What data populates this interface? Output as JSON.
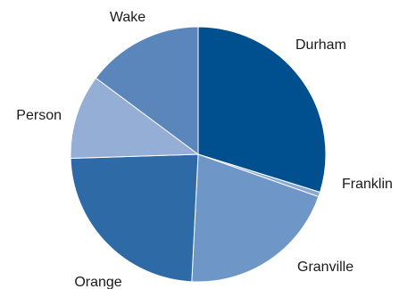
{
  "chart_data": {
    "type": "pie",
    "title": "",
    "start_angle_deg": 0,
    "direction": "clockwise",
    "legend": "none",
    "slices": [
      {
        "label": "Durham",
        "value": 29.8,
        "color": "#004f8f"
      },
      {
        "label": "Franklin",
        "value": 0.6,
        "color": "#8aaad2"
      },
      {
        "label": "Granville",
        "value": 20.4,
        "color": "#6e96c6"
      },
      {
        "label": "Orange",
        "value": 23.7,
        "color": "#2e6aa5"
      },
      {
        "label": "Person",
        "value": 10.7,
        "color": "#94aed6"
      },
      {
        "label": "Wake",
        "value": 14.8,
        "color": "#5a86bc"
      }
    ]
  }
}
